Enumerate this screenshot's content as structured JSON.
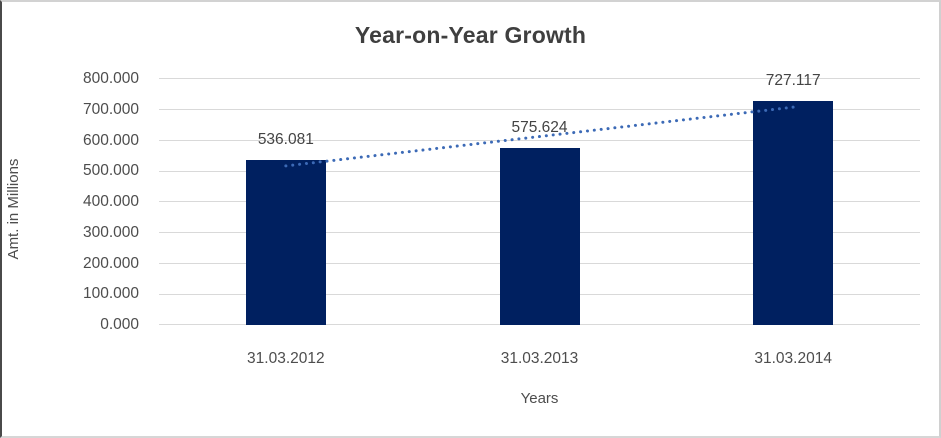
{
  "chart_data": {
    "type": "bar",
    "title": "Year-on-Year Growth",
    "xlabel": "Years",
    "ylabel": "Amt. in Millions",
    "categories": [
      "31.03.2012",
      "31.03.2013",
      "31.03.2014"
    ],
    "values": [
      536.081,
      575.624,
      727.117
    ],
    "value_labels": [
      "536.081",
      "575.624",
      "727.117"
    ],
    "ylim": [
      0,
      800
    ],
    "ytick_step": 100,
    "ytick_labels": [
      "0.000",
      "100.000",
      "200.000",
      "300.000",
      "400.000",
      "500.000",
      "600.000",
      "700.000",
      "800.000"
    ],
    "grid": true,
    "legend": "none",
    "trendline": {
      "style": "dotted",
      "fit": "linear"
    },
    "colors": {
      "bar": "#002060",
      "trend": "#3c6ab6",
      "grid": "#d9d9d9",
      "text": "#4d4d4d",
      "title_text": "#3f3f3f",
      "background": "#ffffff"
    }
  }
}
